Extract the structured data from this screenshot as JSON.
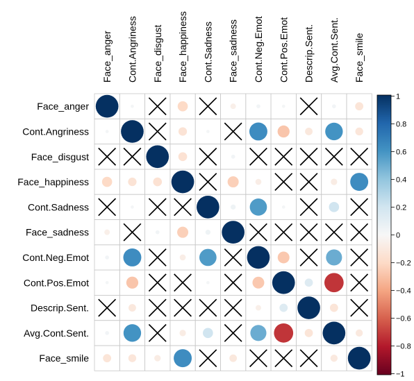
{
  "chart_data": {
    "type": "heatmap",
    "variables": [
      "Face_anger",
      "Cont.Angriness",
      "Face_disgust",
      "Face_happiness",
      "Cont.Sadness",
      "Face_sadness",
      "Cont.Neg.Emot",
      "Cont.Pos.Emot",
      "Descrip.Sent.",
      "Avg.Cont.Sent.",
      "Face_smile"
    ],
    "matrix": [
      [
        1,
        0.02,
        null,
        -0.2,
        null,
        -0.06,
        0.03,
        0.02,
        null,
        0.03,
        -0.13
      ],
      [
        0.02,
        1,
        null,
        -0.14,
        0.02,
        null,
        0.63,
        -0.28,
        -0.11,
        0.6,
        -0.12
      ],
      [
        null,
        null,
        1,
        -0.15,
        null,
        0.03,
        null,
        null,
        null,
        null,
        null
      ],
      [
        -0.2,
        -0.14,
        -0.15,
        1,
        null,
        -0.24,
        -0.07,
        null,
        null,
        -0.08,
        0.63
      ],
      [
        null,
        0.02,
        null,
        null,
        1,
        0.05,
        0.57,
        0.02,
        null,
        0.2,
        null
      ],
      [
        -0.06,
        null,
        0.03,
        -0.24,
        0.05,
        1,
        null,
        null,
        null,
        null,
        null
      ],
      [
        0.03,
        0.63,
        null,
        -0.07,
        0.57,
        null,
        1,
        -0.27,
        null,
        0.5,
        null
      ],
      [
        0.02,
        -0.28,
        null,
        null,
        0.02,
        null,
        -0.27,
        1,
        0.13,
        -0.72,
        null
      ],
      [
        null,
        -0.11,
        null,
        null,
        null,
        null,
        -0.06,
        0.13,
        1,
        -0.13,
        null
      ],
      [
        0.03,
        0.6,
        null,
        -0.08,
        0.2,
        null,
        0.5,
        -0.72,
        -0.13,
        1,
        -0.1
      ],
      [
        -0.13,
        -0.12,
        -0.08,
        0.63,
        null,
        -0.11,
        null,
        null,
        null,
        -0.1,
        1
      ]
    ],
    "colorbar": {
      "ticks": [
        "1",
        "0.8",
        "0.6",
        "0.4",
        "0.2",
        "0",
        "−0.2",
        "−0.4",
        "−0.6",
        "−0.8",
        "−1"
      ],
      "range": [
        -1,
        1
      ]
    },
    "colors": {
      "positive_strong": "#053061",
      "positive_mid": "#4393c3",
      "neutral": "#f7f7f7",
      "negative_mid": "#f4a582",
      "negative_strong": "#67001f",
      "grid": "#c8c8c8"
    }
  }
}
